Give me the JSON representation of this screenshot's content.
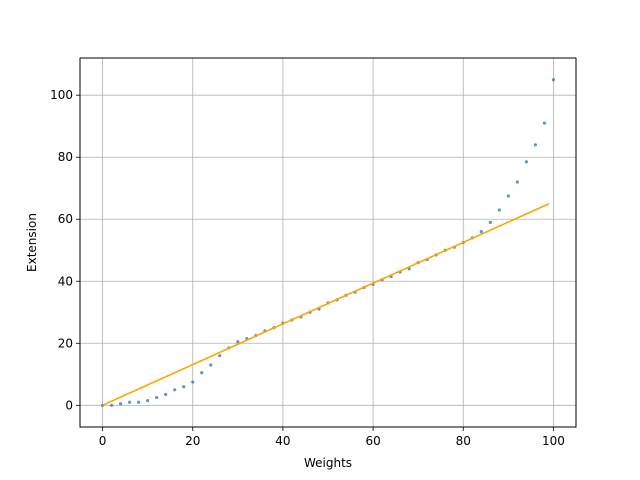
{
  "chart_data": {
    "type": "scatter",
    "title": "",
    "xlabel": "Weights",
    "ylabel": "Extension",
    "xlim": [
      -5,
      105
    ],
    "ylim": [
      -7,
      112
    ],
    "xticks": [
      0,
      20,
      40,
      60,
      80,
      100
    ],
    "yticks": [
      0,
      20,
      40,
      60,
      80,
      100
    ],
    "grid": true,
    "legend": "none",
    "series": [
      {
        "kind": "scatter",
        "color": "#1f77b4",
        "x": [
          0,
          2,
          4,
          6,
          8,
          10,
          12,
          14,
          16,
          18,
          20,
          22,
          24,
          26,
          28,
          30,
          32,
          34,
          36,
          38,
          40,
          42,
          44,
          46,
          48,
          50,
          52,
          54,
          56,
          58,
          60,
          62,
          64,
          66,
          68,
          70,
          72,
          74,
          76,
          78,
          80,
          82,
          84,
          86,
          88,
          90,
          92,
          94,
          96,
          98,
          100
        ],
        "y": [
          0,
          0,
          0.5,
          1,
          1,
          1.5,
          2.5,
          3.5,
          5,
          6,
          7.5,
          10.5,
          13,
          16,
          18.5,
          20.5,
          21.5,
          22.5,
          24,
          25,
          26.5,
          27.5,
          28.5,
          30,
          31,
          33,
          34,
          35.5,
          36.5,
          38,
          39,
          40.5,
          41.5,
          43,
          44,
          46,
          47,
          48.5,
          50,
          51,
          52.5,
          54,
          56,
          59,
          63,
          67.5,
          72,
          78.5,
          84,
          91,
          105
        ]
      },
      {
        "kind": "line",
        "color": "#ffa500",
        "x": [
          0,
          99
        ],
        "y": [
          0,
          65
        ]
      }
    ]
  }
}
